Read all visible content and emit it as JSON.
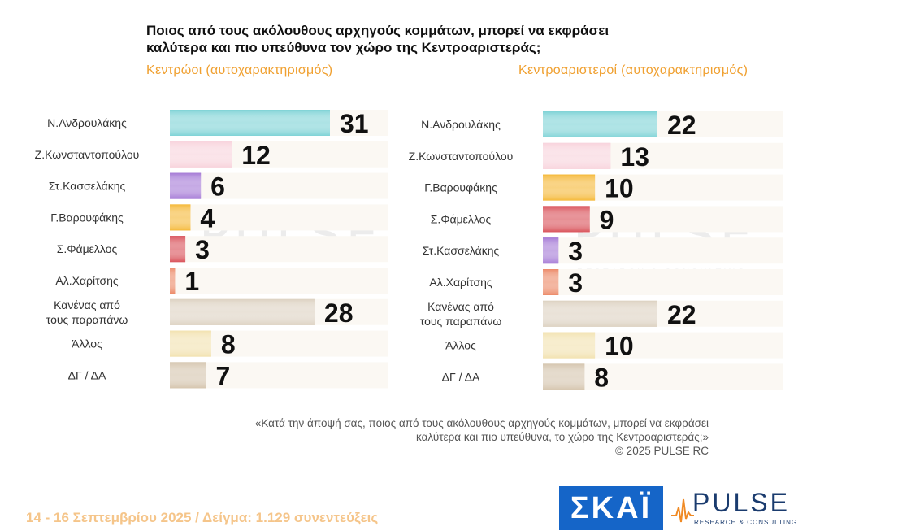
{
  "title_line1": "Ποιος από τους ακόλουθους αρχηγούς κομμάτων, μπορεί να εκφράσει",
  "title_line2": "καλύτερα και πιο υπεύθυνα τον χώρο της Κεντροαριστεράς;",
  "watermark": "PULSE",
  "watermark_sub": "RESEARCH & CONSULTING",
  "chart_data": [
    {
      "type": "bar",
      "orientation": "horizontal",
      "subtitle": "Κεντρώοι  (αυτοχαρακτηρισμός)",
      "categories": [
        [
          "Ν.Ανδρουλάκης"
        ],
        [
          "Ζ.Κωνσταντοπούλου"
        ],
        [
          "Στ.Κασσελάκης"
        ],
        [
          "Γ.Βαρουφάκης"
        ],
        [
          "Σ.Φάμελλος"
        ],
        [
          "Αλ.Χαρίτσης"
        ],
        [
          "Κανένας από",
          "τους παραπάνω"
        ],
        [
          "Άλλος"
        ],
        [
          "ΔΓ / ΔΑ"
        ]
      ],
      "values": [
        31,
        12,
        6,
        4,
        3,
        1,
        28,
        8,
        7
      ],
      "colors": [
        "#7fd3d6",
        "#f8d3dc",
        "#a57ad6",
        "#f5b93a",
        "#d9525a",
        "#ec8a68",
        "#ddd2c2",
        "#f2e2b0",
        "#d5c5ae"
      ],
      "max": 31
    },
    {
      "type": "bar",
      "orientation": "horizontal",
      "subtitle": "Κεντροαριστεροί  (αυτοχαρακτηρισμός)",
      "categories": [
        [
          "Ν.Ανδρουλάκης"
        ],
        [
          "Ζ.Κωνσταντοπούλου"
        ],
        [
          "Γ.Βαρουφάκης"
        ],
        [
          "Σ.Φάμελλος"
        ],
        [
          "Στ.Κασσελάκης"
        ],
        [
          "Αλ.Χαρίτσης"
        ],
        [
          "Κανένας από",
          "τους παραπάνω"
        ],
        [
          "Άλλος"
        ],
        [
          "ΔΓ / ΔΑ"
        ]
      ],
      "values": [
        22,
        13,
        10,
        9,
        3,
        3,
        22,
        10,
        8
      ],
      "colors": [
        "#7fd3d6",
        "#f8d3dc",
        "#f5b93a",
        "#d9525a",
        "#a57ad6",
        "#ec8a68",
        "#ddd2c2",
        "#f2e2b0",
        "#d5c5ae"
      ],
      "max": 22
    }
  ],
  "note_line1": "«Κατά την άποψή σας, ποιος από τους ακόλουθους αρχηγούς κομμάτων, μπορεί να εκφράσει",
  "note_line2": "καλύτερα και πιο υπεύθυνα, το χώρο της Κεντροαριστεράς;»",
  "copyright": "©  2025  PULSE RC",
  "footer": "14 - 16 Σεπτεμβρίου 2025  /  Δείγμα:  1.129 συνεντεύξεις",
  "skai_logo": "ΣΚΑΪ",
  "pulse_logo": "PULSE",
  "pulse_logo_sub": "RESEARCH & CONSULTING"
}
